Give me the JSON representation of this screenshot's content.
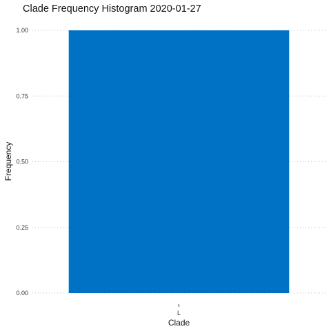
{
  "chart_data": {
    "type": "bar",
    "title": "Clade Frequency Histogram  2020-01-27",
    "xlabel": "Clade",
    "ylabel": "Frequency",
    "categories": [
      "L"
    ],
    "values": [
      1.0
    ],
    "ylim": [
      0,
      1
    ],
    "yticks": [
      "0.00",
      "0.25",
      "0.50",
      "0.75",
      "1.00"
    ],
    "bar_color": "#0072c6",
    "grid": true,
    "legend": "none"
  }
}
